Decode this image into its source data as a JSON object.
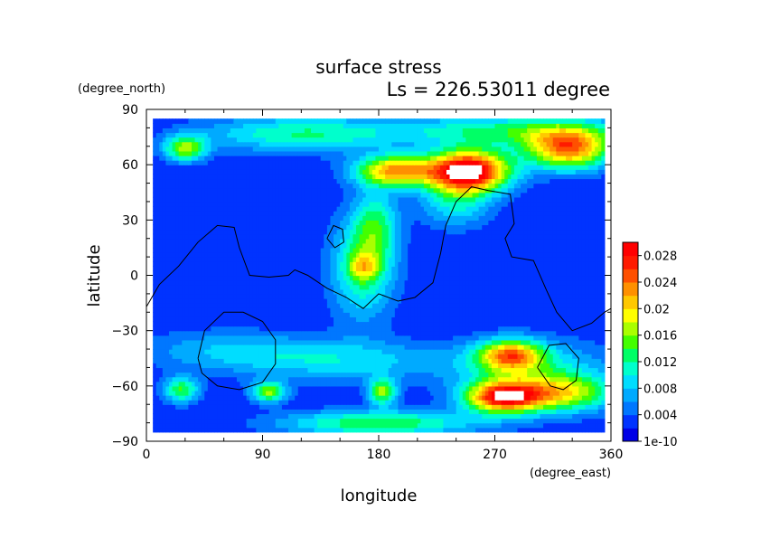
{
  "chart_data": {
    "type": "heatmap",
    "title": "surface stress",
    "subtitle": "Ls = 226.53011 degree",
    "xlabel": "longitude",
    "ylabel": "latitude",
    "x_units": "(degree_east)",
    "y_units": "(degree_north)",
    "xlim": [
      0,
      360
    ],
    "ylim": [
      -90,
      90
    ],
    "x_ticks": [
      "0",
      "90",
      "180",
      "270",
      "360"
    ],
    "y_ticks": [
      "90",
      "60",
      "30",
      "0",
      "−30",
      "−60",
      "−90"
    ],
    "x_tick_values": [
      0,
      90,
      180,
      270,
      360
    ],
    "y_tick_values": [
      90,
      60,
      30,
      0,
      -30,
      -60,
      -90
    ],
    "colorbar": {
      "labels": [
        "0.028",
        "0.024",
        "0.02",
        "0.016",
        "0.012",
        "0.008",
        "0.004",
        "1e-10"
      ],
      "label_values": [
        0.028,
        0.024,
        0.02,
        0.016,
        0.012,
        0.008,
        0.004,
        0
      ],
      "range": [
        0,
        0.03
      ],
      "colors": [
        "#0000e6",
        "#0033ff",
        "#0077ff",
        "#00aaff",
        "#00ddff",
        "#00ffcc",
        "#00ff66",
        "#44ff00",
        "#aaff00",
        "#ffff00",
        "#ffc800",
        "#ff9000",
        "#ff5000",
        "#ff1a00",
        "#ff0000"
      ]
    },
    "data_lon_range": [
      5,
      355
    ],
    "data_lat_range": [
      -85,
      85
    ],
    "background_level": 0.002,
    "features": [
      {
        "lon": 250,
        "lat": 57,
        "sx": 22,
        "sy": 8,
        "amp": 0.03
      },
      {
        "lon": 193,
        "lat": 57,
        "sx": 22,
        "sy": 6,
        "amp": 0.02
      },
      {
        "lon": 327,
        "lat": 69,
        "sx": 24,
        "sy": 8,
        "amp": 0.022
      },
      {
        "lon": 30,
        "lat": 69,
        "sx": 12,
        "sy": 5,
        "amp": 0.014
      },
      {
        "lon": 120,
        "lat": 77,
        "sx": 55,
        "sy": 7,
        "amp": 0.01
      },
      {
        "lon": 280,
        "lat": 79,
        "sx": 60,
        "sy": 6,
        "amp": 0.01
      },
      {
        "lon": 240,
        "lat": 40,
        "sx": 20,
        "sy": 10,
        "amp": 0.008
      },
      {
        "lon": 168,
        "lat": 5,
        "sx": 18,
        "sy": 20,
        "amp": 0.011
      },
      {
        "lon": 178,
        "lat": 28,
        "sx": 12,
        "sy": 14,
        "amp": 0.008
      },
      {
        "lon": 168,
        "lat": 5,
        "sx": 8,
        "sy": 5,
        "amp": 0.008
      },
      {
        "lon": 282,
        "lat": -43,
        "sx": 18,
        "sy": 6,
        "amp": 0.018
      },
      {
        "lon": 275,
        "lat": -66,
        "sx": 20,
        "sy": 6,
        "amp": 0.022
      },
      {
        "lon": 320,
        "lat": -64,
        "sx": 30,
        "sy": 7,
        "amp": 0.014
      },
      {
        "lon": 180,
        "lat": -80,
        "sx": 55,
        "sy": 5,
        "amp": 0.012
      },
      {
        "lon": 183,
        "lat": -63,
        "sx": 8,
        "sy": 5,
        "amp": 0.014
      },
      {
        "lon": 95,
        "lat": -63,
        "sx": 10,
        "sy": 4,
        "amp": 0.014
      },
      {
        "lon": 27,
        "lat": -62,
        "sx": 10,
        "sy": 5,
        "amp": 0.012
      },
      {
        "lon": 150,
        "lat": -46,
        "sx": 60,
        "sy": 8,
        "amp": 0.007
      },
      {
        "lon": 300,
        "lat": -52,
        "sx": 45,
        "sy": 12,
        "amp": 0.008
      },
      {
        "lon": 60,
        "lat": -40,
        "sx": 50,
        "sy": 8,
        "amp": 0.005
      }
    ],
    "topography_contours": [
      [
        [
          0,
          -17
        ],
        [
          10,
          -5
        ],
        [
          25,
          5
        ],
        [
          40,
          18
        ],
        [
          55,
          27
        ],
        [
          68,
          26
        ],
        [
          72,
          15
        ],
        [
          80,
          0
        ],
        [
          95,
          -1
        ],
        [
          110,
          0
        ],
        [
          115,
          3
        ],
        [
          125,
          0
        ],
        [
          140,
          -7
        ],
        [
          155,
          -12
        ],
        [
          168,
          -18
        ],
        [
          180,
          -10
        ],
        [
          195,
          -14
        ],
        [
          208,
          -12
        ],
        [
          222,
          -4
        ],
        [
          228,
          12
        ],
        [
          232,
          27
        ],
        [
          240,
          40
        ],
        [
          252,
          48
        ],
        [
          265,
          46
        ],
        [
          282,
          44
        ],
        [
          285,
          28
        ],
        [
          278,
          20
        ],
        [
          283,
          10
        ],
        [
          300,
          8
        ],
        [
          310,
          -8
        ],
        [
          318,
          -20
        ],
        [
          330,
          -30
        ],
        [
          345,
          -26
        ],
        [
          355,
          -20
        ],
        [
          360,
          -18
        ]
      ],
      [
        [
          140,
          20
        ],
        [
          145,
          27
        ],
        [
          152,
          25
        ],
        [
          153,
          18
        ],
        [
          146,
          15
        ],
        [
          140,
          20
        ]
      ],
      [
        [
          40,
          -45
        ],
        [
          45,
          -30
        ],
        [
          60,
          -20
        ],
        [
          75,
          -20
        ],
        [
          90,
          -25
        ],
        [
          100,
          -35
        ],
        [
          100,
          -48
        ],
        [
          90,
          -58
        ],
        [
          72,
          -62
        ],
        [
          55,
          -60
        ],
        [
          43,
          -53
        ],
        [
          40,
          -45
        ]
      ],
      [
        [
          303,
          -50
        ],
        [
          312,
          -38
        ],
        [
          325,
          -37
        ],
        [
          335,
          -45
        ],
        [
          333,
          -57
        ],
        [
          323,
          -62
        ],
        [
          313,
          -60
        ],
        [
          303,
          -50
        ]
      ]
    ]
  }
}
